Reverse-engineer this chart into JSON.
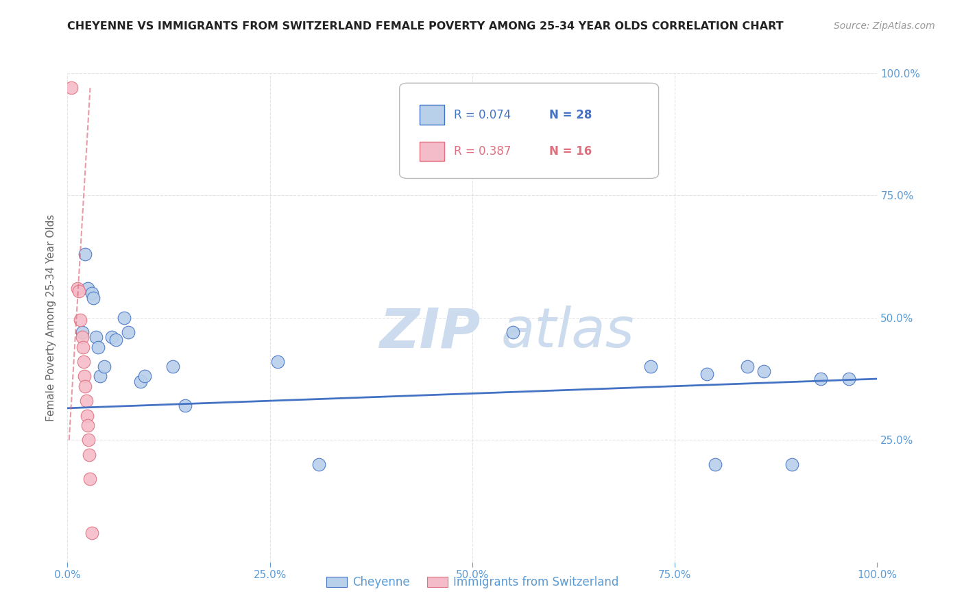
{
  "title": "CHEYENNE VS IMMIGRANTS FROM SWITZERLAND FEMALE POVERTY AMONG 25-34 YEAR OLDS CORRELATION CHART",
  "source": "Source: ZipAtlas.com",
  "ylabel": "Female Poverty Among 25-34 Year Olds",
  "legend_r1": "R = 0.074",
  "legend_n1": "N = 28",
  "legend_r2": "R = 0.387",
  "legend_n2": "N = 16",
  "legend_label1": "Cheyenne",
  "legend_label2": "Immigrants from Switzerland",
  "color_blue": "#b8d0ea",
  "color_pink": "#f4bcc8",
  "color_blue_line": "#4472c4",
  "color_pink_line": "#e07080",
  "color_r_blue": "#4472c4",
  "color_r_pink": "#e07080",
  "xlim": [
    0,
    1
  ],
  "ylim": [
    0,
    1
  ],
  "blue_points": [
    [
      0.018,
      0.47
    ],
    [
      0.022,
      0.63
    ],
    [
      0.025,
      0.56
    ],
    [
      0.03,
      0.55
    ],
    [
      0.032,
      0.54
    ],
    [
      0.035,
      0.46
    ],
    [
      0.038,
      0.44
    ],
    [
      0.04,
      0.38
    ],
    [
      0.045,
      0.4
    ],
    [
      0.055,
      0.46
    ],
    [
      0.06,
      0.455
    ],
    [
      0.07,
      0.5
    ],
    [
      0.075,
      0.47
    ],
    [
      0.09,
      0.37
    ],
    [
      0.095,
      0.38
    ],
    [
      0.13,
      0.4
    ],
    [
      0.145,
      0.32
    ],
    [
      0.26,
      0.41
    ],
    [
      0.31,
      0.2
    ],
    [
      0.55,
      0.47
    ],
    [
      0.72,
      0.4
    ],
    [
      0.79,
      0.385
    ],
    [
      0.8,
      0.2
    ],
    [
      0.84,
      0.4
    ],
    [
      0.86,
      0.39
    ],
    [
      0.895,
      0.2
    ],
    [
      0.93,
      0.375
    ],
    [
      0.965,
      0.375
    ]
  ],
  "pink_points": [
    [
      0.005,
      0.97
    ],
    [
      0.012,
      0.56
    ],
    [
      0.014,
      0.555
    ],
    [
      0.016,
      0.495
    ],
    [
      0.018,
      0.46
    ],
    [
      0.019,
      0.44
    ],
    [
      0.02,
      0.41
    ],
    [
      0.021,
      0.38
    ],
    [
      0.022,
      0.36
    ],
    [
      0.023,
      0.33
    ],
    [
      0.024,
      0.3
    ],
    [
      0.025,
      0.28
    ],
    [
      0.026,
      0.25
    ],
    [
      0.027,
      0.22
    ],
    [
      0.028,
      0.17
    ],
    [
      0.03,
      0.06
    ]
  ],
  "blue_line_x": [
    0.0,
    1.0
  ],
  "blue_line_y": [
    0.315,
    0.375
  ],
  "pink_line_x": [
    0.002,
    0.028
  ],
  "pink_line_y": [
    0.25,
    0.97
  ],
  "watermark_zip": "ZIP",
  "watermark_atlas": "atlas",
  "watermark_color": "#ccdcee",
  "background_color": "#ffffff",
  "grid_color": "#dddddd",
  "title_color": "#222222",
  "source_color": "#999999",
  "tick_color": "#5b9bd5",
  "ylabel_color": "#666666"
}
